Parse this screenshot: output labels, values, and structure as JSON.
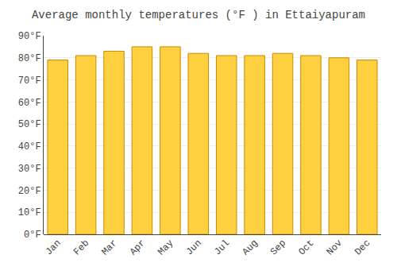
{
  "chart_data": {
    "type": "bar",
    "title": "Average monthly temperatures (°F ) in Ettaiyapuram",
    "categories": [
      "Jan",
      "Feb",
      "Mar",
      "Apr",
      "May",
      "Jun",
      "Jul",
      "Aug",
      "Sep",
      "Oct",
      "Nov",
      "Dec"
    ],
    "values": [
      79,
      81,
      83,
      85,
      85,
      82,
      81,
      81,
      82,
      81,
      80,
      79
    ],
    "color": "#FFD040",
    "ylim": [
      0,
      90
    ],
    "yticks": [
      {
        "value": 0,
        "label": "0°F"
      },
      {
        "value": 10,
        "label": "10°F"
      },
      {
        "value": 20,
        "label": "20°F"
      },
      {
        "value": 30,
        "label": "30°F"
      },
      {
        "value": 40,
        "label": "40°F"
      },
      {
        "value": 50,
        "label": "50°F"
      },
      {
        "value": 60,
        "label": "60°F"
      },
      {
        "value": 70,
        "label": "70°F"
      },
      {
        "value": 80,
        "label": "80°F"
      },
      {
        "value": 90,
        "label": "90°F"
      }
    ],
    "grid": true
  }
}
